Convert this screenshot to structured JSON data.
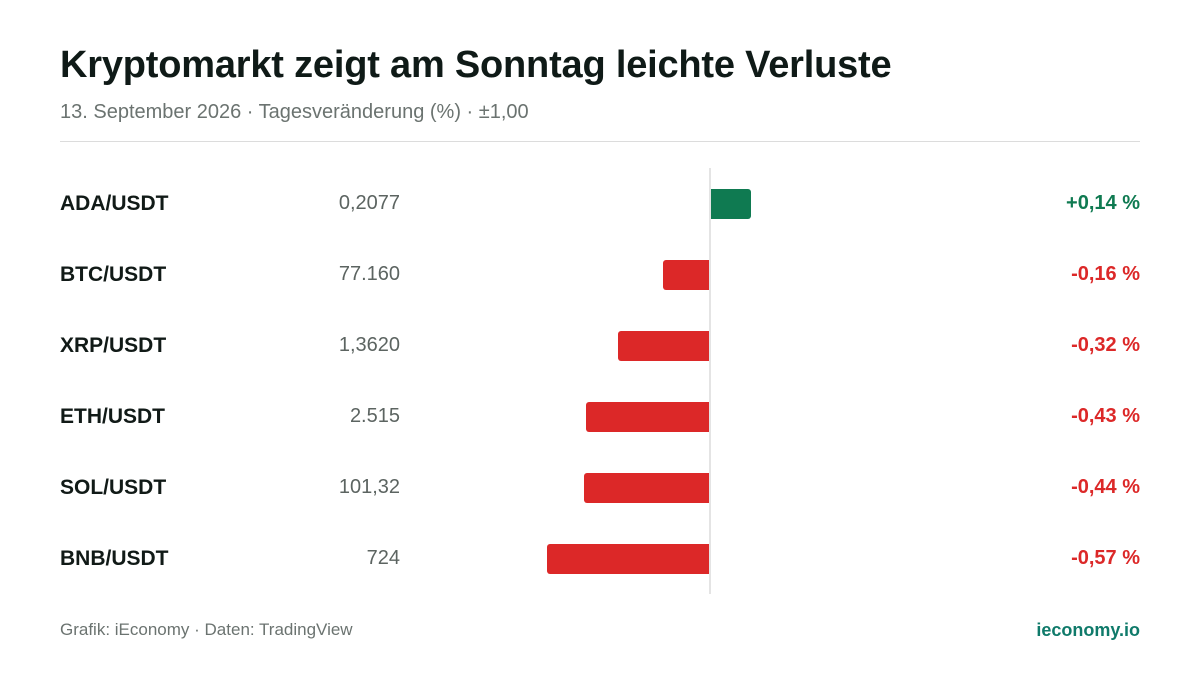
{
  "header": {
    "title": "Kryptomarkt zeigt am Sonntag leichte Verluste",
    "subtitle": "13. September 2026 · Tagesveränderung (%) · ±1,00"
  },
  "footer": {
    "source": "Grafik: iEconomy · Daten: TradingView",
    "brand": "ieconomy.io"
  },
  "colors": {
    "positive": "#0f7a51",
    "negative": "#dc2828"
  },
  "chart_data": {
    "type": "bar",
    "orientation": "horizontal",
    "xlim": [
      -1.0,
      1.0
    ],
    "rows": [
      {
        "pair": "ADA/USDT",
        "price": "0,2077",
        "value": 0.14,
        "label": "+0,14 %"
      },
      {
        "pair": "BTC/USDT",
        "price": "77.160",
        "value": -0.16,
        "label": "-0,16 %"
      },
      {
        "pair": "XRP/USDT",
        "price": "1,3620",
        "value": -0.32,
        "label": "-0,32 %"
      },
      {
        "pair": "ETH/USDT",
        "price": "2.515",
        "value": -0.43,
        "label": "-0,43 %"
      },
      {
        "pair": "SOL/USDT",
        "price": "101,32",
        "value": -0.44,
        "label": "-0,44 %"
      },
      {
        "pair": "BNB/USDT",
        "price": "724",
        "value": -0.57,
        "label": "-0,57 %"
      }
    ]
  }
}
